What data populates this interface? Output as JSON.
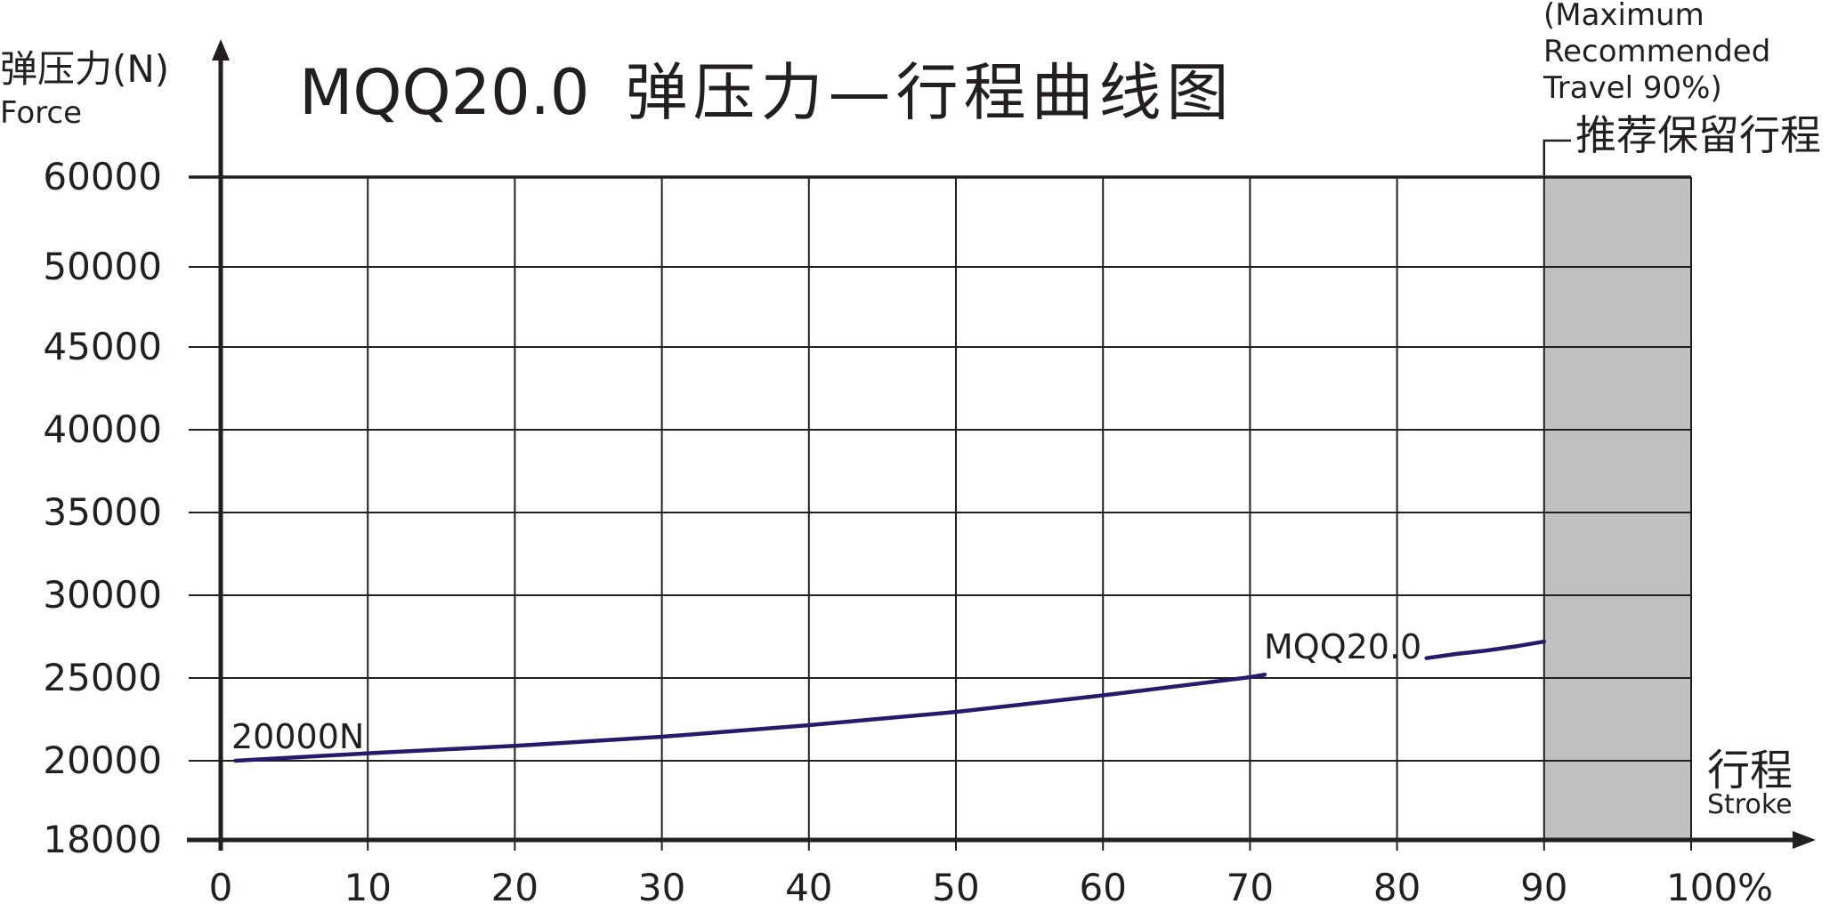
{
  "chart_data": {
    "type": "line",
    "title": "MQQ20.0 弹压力—行程曲线图",
    "ylabel_cn": "弹压力(N)",
    "ylabel_en": "Force",
    "xlabel_cn": "行程",
    "xlabel_en": "Stroke",
    "y_ticks": [
      18000,
      20000,
      25000,
      30000,
      35000,
      40000,
      45000,
      50000,
      60000
    ],
    "y_tick_labels": [
      "18000",
      "20000",
      "25000",
      "30000",
      "35000",
      "40000",
      "45000",
      "50000",
      "60000"
    ],
    "x_ticks": [
      0,
      10,
      20,
      30,
      40,
      50,
      60,
      70,
      80,
      90,
      100
    ],
    "x_tick_labels": [
      "0",
      "10",
      "20",
      "30",
      "40",
      "50",
      "60",
      "70",
      "80",
      "90",
      "100%"
    ],
    "xlim": [
      0,
      100
    ],
    "grid": true,
    "reserved_region": {
      "x_range": [
        90,
        100
      ],
      "label_cn": "推荐保留行程",
      "label_en_lines": [
        "(Maximum",
        "Recommended",
        " Travel 90%)"
      ],
      "color": "#c0c0c0"
    },
    "series": [
      {
        "name": "MQQ20.0",
        "color": "#241c6b",
        "segments": [
          {
            "x": [
              1,
              10,
              20,
              30,
              40,
              50,
              60,
              65,
              70,
              71
            ],
            "y": [
              20000,
              20450,
              20900,
              21450,
              22150,
              22950,
              23950,
              24500,
              25050,
              25200
            ]
          },
          {
            "x": [
              82,
              84,
              86,
              88,
              90
            ],
            "y": [
              26200,
              26450,
              26650,
              26900,
              27200
            ]
          }
        ]
      }
    ],
    "annotations": [
      {
        "text": "20000N",
        "x": 1,
        "y": 20000
      },
      {
        "text": "MQQ20.0",
        "x": 70,
        "y": 25200
      }
    ]
  }
}
